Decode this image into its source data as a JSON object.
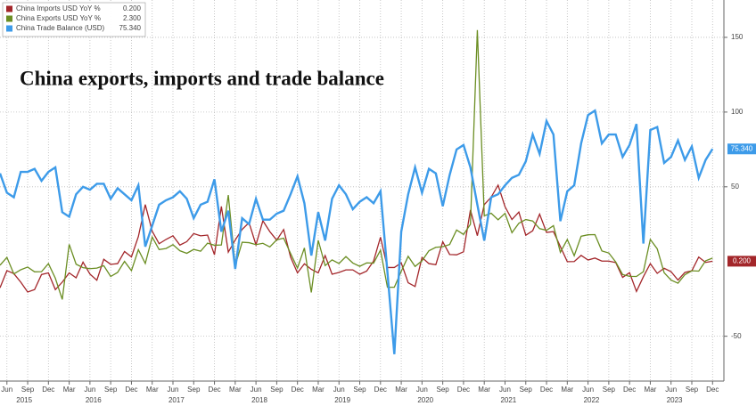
{
  "chart_data": {
    "type": "line",
    "title": "China exports, imports and trade balance",
    "x": [
      "2015-05",
      "2015-06",
      "2015-07",
      "2015-08",
      "2015-09",
      "2015-10",
      "2015-11",
      "2015-12",
      "2016-01",
      "2016-02",
      "2016-03",
      "2016-04",
      "2016-05",
      "2016-06",
      "2016-07",
      "2016-08",
      "2016-09",
      "2016-10",
      "2016-11",
      "2016-12",
      "2017-01",
      "2017-02",
      "2017-03",
      "2017-04",
      "2017-05",
      "2017-06",
      "2017-07",
      "2017-08",
      "2017-09",
      "2017-10",
      "2017-11",
      "2017-12",
      "2018-01",
      "2018-02",
      "2018-03",
      "2018-04",
      "2018-05",
      "2018-06",
      "2018-07",
      "2018-08",
      "2018-09",
      "2018-10",
      "2018-11",
      "2018-12",
      "2019-01",
      "2019-02",
      "2019-03",
      "2019-04",
      "2019-05",
      "2019-06",
      "2019-07",
      "2019-08",
      "2019-09",
      "2019-10",
      "2019-11",
      "2019-12",
      "2020-01",
      "2020-02",
      "2020-03",
      "2020-04",
      "2020-05",
      "2020-06",
      "2020-07",
      "2020-08",
      "2020-09",
      "2020-10",
      "2020-11",
      "2020-12",
      "2021-01",
      "2021-02",
      "2021-03",
      "2021-04",
      "2021-05",
      "2021-06",
      "2021-07",
      "2021-08",
      "2021-09",
      "2021-10",
      "2021-11",
      "2021-12",
      "2022-01",
      "2022-02",
      "2022-03",
      "2022-04",
      "2022-05",
      "2022-06",
      "2022-07",
      "2022-08",
      "2022-09",
      "2022-10",
      "2022-11",
      "2022-12",
      "2023-01",
      "2023-02",
      "2023-03",
      "2023-04",
      "2023-05",
      "2023-06",
      "2023-07",
      "2023-08",
      "2023-09",
      "2023-10",
      "2023-11",
      "2023-12"
    ],
    "years": [
      "2015",
      "2016",
      "2017",
      "2018",
      "2019",
      "2020",
      "2021",
      "2022",
      "2023"
    ],
    "series": [
      {
        "name": "China Imports USD YoY %",
        "color": "#a3262a",
        "legend_value": "0.200",
        "values": [
          -17.6,
          -6.1,
          -8.1,
          -13.8,
          -20.4,
          -18.8,
          -8.7,
          -7.6,
          -18.8,
          -13.8,
          -7.6,
          -10.9,
          -0.4,
          -8.4,
          -12.5,
          1.5,
          -1.9,
          -1.4,
          6.7,
          3.1,
          16.7,
          38.1,
          20.3,
          11.9,
          14.8,
          17.2,
          11,
          13.3,
          18.7,
          17.2,
          17.7,
          4.5,
          36.9,
          6.3,
          14.4,
          21.5,
          26,
          11.2,
          27.3,
          20,
          14.3,
          21.4,
          3,
          -7.6,
          -1.5,
          -5.2,
          -7.6,
          4,
          -8.5,
          -7.3,
          -5.6,
          -5.6,
          -8.5,
          -6.4,
          0.3,
          16.3,
          -4,
          -4,
          -0.9,
          -14.2,
          -16.7,
          2.7,
          -1.4,
          -2.1,
          13.2,
          4.7,
          4.5,
          6.5,
          34.5,
          17.3,
          38.1,
          43.1,
          51.1,
          36.7,
          28.1,
          33.1,
          17.6,
          20.6,
          31.7,
          19.5,
          20,
          10,
          -0.1,
          0,
          4.1,
          1,
          2.3,
          0.3,
          0.3,
          -0.7,
          -10.6,
          -7.5,
          -20,
          -10.2,
          -1.4,
          -7.9,
          -4.5,
          -6.8,
          -12.4,
          -7.3,
          -6.2,
          3,
          -0.6,
          0.2
        ]
      },
      {
        "name": "China Exports USD YoY %",
        "color": "#6b8e23",
        "legend_value": "2.300",
        "values": [
          -2.5,
          2.8,
          -8.3,
          -5.5,
          -3.7,
          -6.9,
          -6.8,
          -1.4,
          -11.2,
          -25.4,
          11.5,
          -1.8,
          -4.1,
          -4.8,
          -4.4,
          -2.8,
          -10,
          -7.3,
          0.1,
          -6.1,
          7.9,
          -1.3,
          16.4,
          8,
          8.7,
          11.3,
          7.2,
          5.5,
          8.1,
          6.9,
          12.3,
          10.9,
          11.1,
          44.5,
          -2.7,
          12.9,
          12.6,
          11.3,
          12.2,
          9.8,
          14.5,
          15.6,
          5.4,
          -4.4,
          9.1,
          -20.7,
          14.2,
          -2.7,
          1.1,
          -1.3,
          3.3,
          -1,
          -3.2,
          -0.9,
          -1.1,
          7.6,
          -17.2,
          -17.2,
          -6.6,
          3.5,
          -3.3,
          0.5,
          7.2,
          9.5,
          9.9,
          11.4,
          21.1,
          18.1,
          24.9,
          154.9,
          30.6,
          32.3,
          27.9,
          32.2,
          19.3,
          25.6,
          28.1,
          27.1,
          22,
          20.9,
          24,
          6.2,
          14.7,
          3.9,
          16.9,
          17.9,
          18,
          7.1,
          5.7,
          -0.3,
          -8.7,
          -9.9,
          -10,
          -6.8,
          14.8,
          8.5,
          -7.5,
          -12.4,
          -14.5,
          -8.8,
          -6.2,
          -6.4,
          0.5,
          2.3
        ]
      },
      {
        "name": "China Trade Balance (USD)",
        "color": "#3d9be9",
        "legend_value": "75.340",
        "values": [
          59,
          46,
          43,
          60,
          60,
          62,
          54,
          60,
          63,
          33,
          30,
          45,
          50,
          48,
          52,
          52,
          42,
          49,
          45,
          41,
          51,
          10,
          24,
          38,
          41,
          43,
          47,
          42,
          29,
          38,
          40,
          55,
          20,
          34,
          -5,
          29,
          25,
          42,
          28,
          28,
          32,
          34,
          45,
          57,
          39,
          4,
          33,
          14,
          42,
          51,
          45,
          35,
          40,
          43,
          39,
          47,
          -7,
          -62,
          20,
          45,
          63,
          46,
          62,
          59,
          37,
          58,
          75,
          78,
          63,
          38,
          14,
          43,
          45,
          51,
          56,
          58,
          67,
          85,
          72,
          94,
          85,
          27,
          47,
          51,
          79,
          98,
          101,
          79,
          85,
          85,
          70,
          78,
          92,
          12,
          88,
          90,
          66,
          70,
          81,
          68,
          77,
          56,
          68,
          75.34
        ]
      }
    ],
    "ylim": [
      -80,
      175
    ],
    "yticks": [
      -50,
      50,
      100,
      150
    ],
    "xticks": [
      {
        "value": "2015-06",
        "label": "Jun"
      },
      {
        "value": "2015-09",
        "label": "Sep"
      },
      {
        "value": "2015-12",
        "label": "Dec"
      },
      {
        "value": "2016-03",
        "label": "Mar"
      },
      {
        "value": "2016-06",
        "label": "Jun"
      },
      {
        "value": "2016-09",
        "label": "Sep"
      },
      {
        "value": "2016-12",
        "label": "Dec"
      },
      {
        "value": "2017-03",
        "label": "Mar"
      },
      {
        "value": "2017-06",
        "label": "Jun"
      },
      {
        "value": "2017-09",
        "label": "Sep"
      },
      {
        "value": "2017-12",
        "label": "Dec"
      },
      {
        "value": "2018-03",
        "label": "Mar"
      },
      {
        "value": "2018-06",
        "label": "Jun"
      },
      {
        "value": "2018-09",
        "label": "Sep"
      },
      {
        "value": "2018-12",
        "label": "Dec"
      },
      {
        "value": "2019-03",
        "label": "Mar"
      },
      {
        "value": "2019-06",
        "label": "Jun"
      },
      {
        "value": "2019-09",
        "label": "Sep"
      },
      {
        "value": "2019-12",
        "label": "Dec"
      },
      {
        "value": "2020-03",
        "label": "Mar"
      },
      {
        "value": "2020-06",
        "label": "Jun"
      },
      {
        "value": "2020-09",
        "label": "Sep"
      },
      {
        "value": "2020-12",
        "label": "Dec"
      },
      {
        "value": "2021-03",
        "label": "Mar"
      },
      {
        "value": "2021-06",
        "label": "Jun"
      },
      {
        "value": "2021-09",
        "label": "Sep"
      },
      {
        "value": "2021-12",
        "label": "Dec"
      },
      {
        "value": "2022-03",
        "label": "Mar"
      },
      {
        "value": "2022-06",
        "label": "Jun"
      },
      {
        "value": "2022-09",
        "label": "Sep"
      },
      {
        "value": "2022-12",
        "label": "Dec"
      },
      {
        "value": "2023-03",
        "label": "Mar"
      },
      {
        "value": "2023-06",
        "label": "Jun"
      },
      {
        "value": "2023-09",
        "label": "Sep"
      },
      {
        "value": "2023-12",
        "label": "Dec"
      }
    ],
    "grid": true
  }
}
